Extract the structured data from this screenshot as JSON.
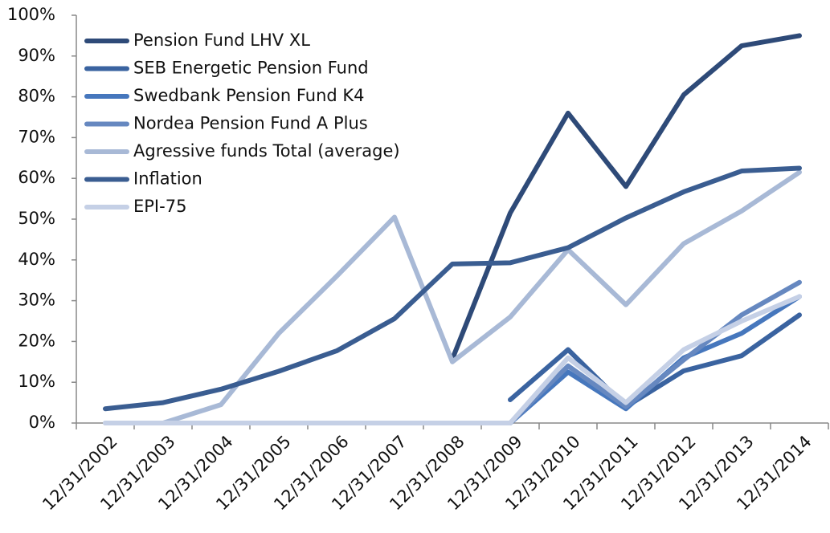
{
  "chart_data": {
    "type": "line",
    "categories": [
      "12/31/2002",
      "12/31/2003",
      "12/31/2004",
      "12/31/2005",
      "12/31/2006",
      "12/31/2007",
      "12/31/2008",
      "12/31/2009",
      "12/31/2010",
      "12/31/2011",
      "12/31/2012",
      "12/31/2013",
      "12/31/2014"
    ],
    "series": [
      {
        "name": "Pension Fund LHV XL",
        "color": "#2e4a78",
        "values": [
          null,
          null,
          null,
          null,
          null,
          null,
          15.7,
          51.5,
          76,
          58,
          80.5,
          92.5,
          95
        ]
      },
      {
        "name": "SEB Energetic Pension Fund",
        "color": "#3a63a0",
        "values": [
          null,
          null,
          null,
          null,
          null,
          null,
          null,
          5.7,
          18,
          4,
          12.8,
          16.5,
          26.5
        ]
      },
      {
        "name": "Swedbank Pension Fund K4",
        "color": "#4677bd",
        "values": [
          null,
          null,
          null,
          null,
          null,
          null,
          null,
          0,
          12.5,
          3.5,
          16,
          22,
          31
        ]
      },
      {
        "name": "Nordea Pension Fund A Plus",
        "color": "#6688c0",
        "values": [
          null,
          null,
          null,
          null,
          null,
          null,
          null,
          0,
          14,
          4,
          15.5,
          26.5,
          34.5
        ]
      },
      {
        "name": "Agressive funds Total (average)",
        "color": "#a8b9d6",
        "values": [
          0,
          0,
          4.5,
          22,
          36,
          50.5,
          15,
          26,
          42.5,
          29,
          44,
          52,
          61.5
        ]
      },
      {
        "name": "Inflation",
        "color": "#3a5d91",
        "values": [
          3.5,
          5,
          8.3,
          12.7,
          17.7,
          25.6,
          39,
          39.3,
          43,
          50.3,
          56.7,
          61.8,
          62.5
        ]
      },
      {
        "name": "EPI-75",
        "color": "#c5d0e6",
        "values": [
          0,
          0,
          0,
          0,
          0,
          0,
          0,
          0,
          16,
          5,
          18,
          25,
          31
        ]
      }
    ],
    "ylim": [
      0,
      100
    ],
    "yticks": [
      {
        "value": 0,
        "label": "0%"
      },
      {
        "value": 10,
        "label": "10%"
      },
      {
        "value": 20,
        "label": "20%"
      },
      {
        "value": 30,
        "label": "30%"
      },
      {
        "value": 40,
        "label": "40%"
      },
      {
        "value": 50,
        "label": "50%"
      },
      {
        "value": 60,
        "label": "60%"
      },
      {
        "value": 70,
        "label": "70%"
      },
      {
        "value": 80,
        "label": "80%"
      },
      {
        "value": 90,
        "label": "90%"
      },
      {
        "value": 100,
        "label": "100%"
      }
    ],
    "legend": "upper left"
  }
}
